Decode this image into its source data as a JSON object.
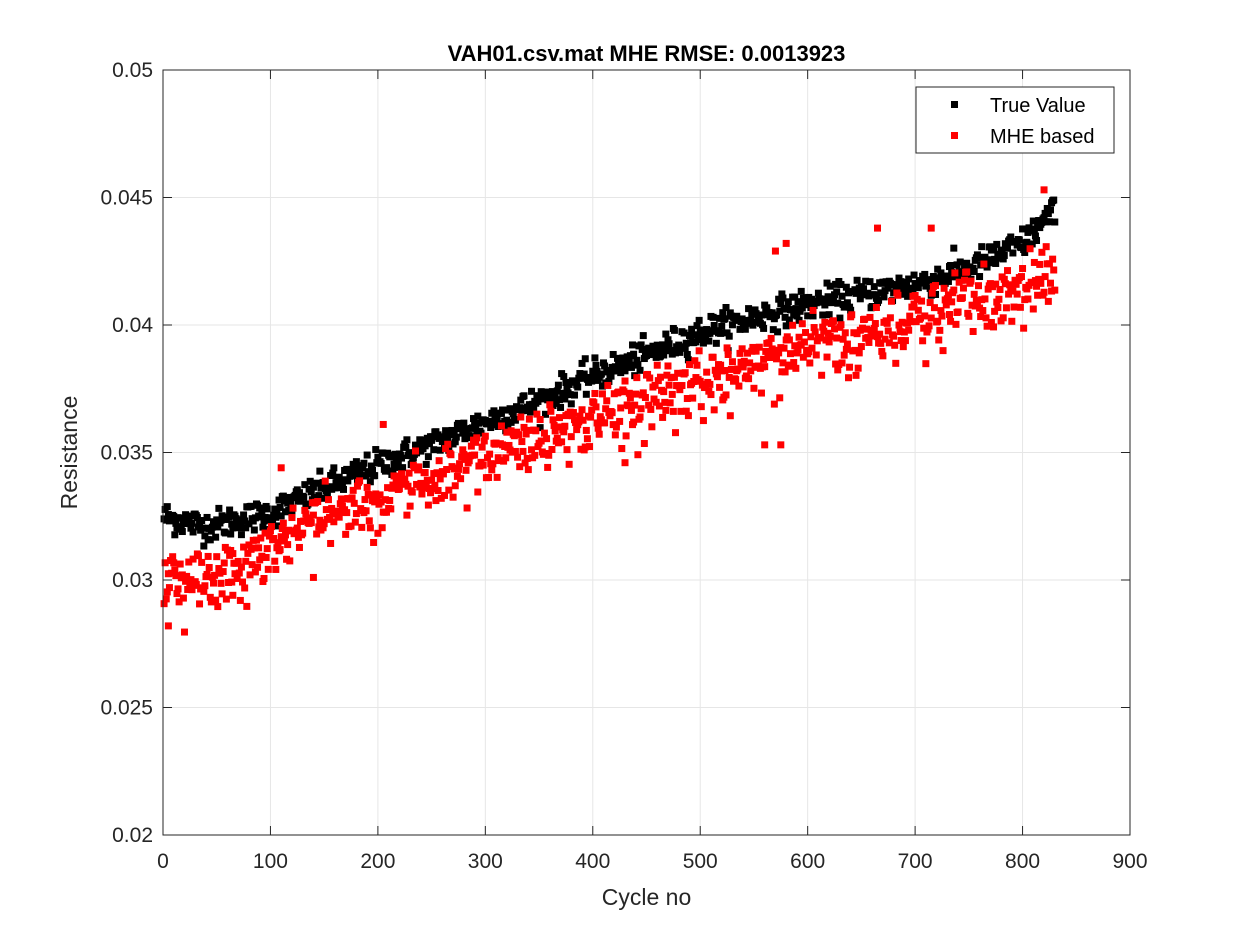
{
  "chart_data": {
    "type": "scatter",
    "title": "VAH01.csv.mat MHE RMSE: 0.0013923",
    "xlabel": "Cycle no",
    "ylabel": "Resistance",
    "xlim": [
      0,
      900
    ],
    "ylim": [
      0.02,
      0.05
    ],
    "xticks": [
      0,
      100,
      200,
      300,
      400,
      500,
      600,
      700,
      800,
      900
    ],
    "yticks": [
      0.02,
      0.025,
      0.03,
      0.035,
      0.04,
      0.045,
      0.05
    ],
    "xtick_labels": [
      "0",
      "100",
      "200",
      "300",
      "400",
      "500",
      "600",
      "700",
      "800",
      "900"
    ],
    "ytick_labels": [
      "0.02",
      "0.025",
      "0.03",
      "0.035",
      "0.04",
      "0.045",
      "0.05"
    ],
    "grid": true,
    "legend_position": "top-right",
    "series": [
      {
        "name": "True Value",
        "color": "#000000",
        "marker": "square",
        "trend": [
          [
            0,
            0.0325
          ],
          [
            40,
            0.0321
          ],
          [
            100,
            0.0326
          ],
          [
            150,
            0.0336
          ],
          [
            200,
            0.0345
          ],
          [
            250,
            0.0353
          ],
          [
            300,
            0.0362
          ],
          [
            350,
            0.037
          ],
          [
            400,
            0.038
          ],
          [
            450,
            0.0388
          ],
          [
            500,
            0.0397
          ],
          [
            550,
            0.0403
          ],
          [
            600,
            0.0408
          ],
          [
            650,
            0.0412
          ],
          [
            700,
            0.0416
          ],
          [
            750,
            0.0422
          ],
          [
            800,
            0.0432
          ],
          [
            830,
            0.0445
          ]
        ],
        "noise": 0.0003,
        "n_points": 830
      },
      {
        "name": "MHE based",
        "color": "#ff0000",
        "marker": "square",
        "trend": [
          [
            0,
            0.0305
          ],
          [
            50,
            0.0308
          ],
          [
            100,
            0.0318
          ],
          [
            150,
            0.033
          ],
          [
            200,
            0.0338
          ],
          [
            250,
            0.0345
          ],
          [
            300,
            0.0355
          ],
          [
            350,
            0.0362
          ],
          [
            400,
            0.0368
          ],
          [
            450,
            0.0377
          ],
          [
            500,
            0.0383
          ],
          [
            550,
            0.039
          ],
          [
            600,
            0.0396
          ],
          [
            650,
            0.0402
          ],
          [
            700,
            0.0408
          ],
          [
            750,
            0.0415
          ],
          [
            800,
            0.042
          ],
          [
            830,
            0.0426
          ]
        ],
        "noise": 0.0009,
        "n_points": 830,
        "highlights": [
          [
            5,
            0.0282
          ],
          [
            65,
            0.0294
          ],
          [
            140,
            0.0301
          ],
          [
            430,
            0.0346
          ],
          [
            560,
            0.0353
          ],
          [
            575,
            0.0353
          ],
          [
            820,
            0.0453
          ],
          [
            665,
            0.0438
          ],
          [
            715,
            0.0438
          ],
          [
            580,
            0.0432
          ],
          [
            570,
            0.0429
          ],
          [
            110,
            0.0344
          ],
          [
            205,
            0.0361
          ]
        ]
      }
    ]
  }
}
